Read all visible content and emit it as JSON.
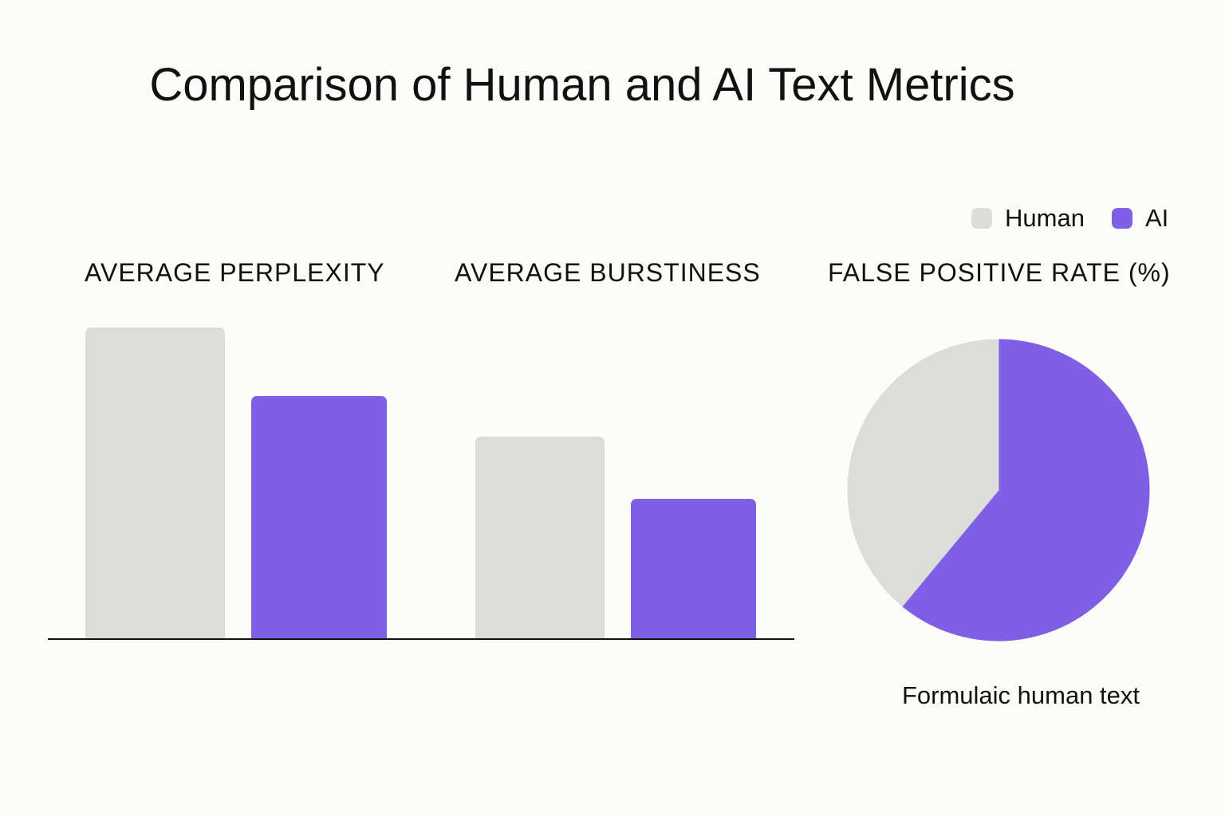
{
  "chart_data": [
    {
      "type": "bar",
      "title": "Comparison of Human and AI Text Metrics",
      "categories": [
        "AVERAGE PERPLEXITY",
        "AVERAGE BURSTINESS"
      ],
      "series": [
        {
          "name": "Human",
          "values": [
            100,
            65
          ],
          "color": "#dcdcda"
        },
        {
          "name": "AI",
          "values": [
            78,
            45
          ],
          "color": "#7f5fe3"
        }
      ],
      "ylim": [
        0,
        100
      ],
      "xlabel": "",
      "ylabel": "",
      "grid": false,
      "legend": "top-right"
    },
    {
      "type": "pie",
      "title": "FALSE POSITIVE RATE (%)",
      "slices": [
        {
          "name": "AI",
          "value": 61,
          "color": "#7f5fe3"
        },
        {
          "name": "Human",
          "value": 39,
          "color": "#dcdcda"
        }
      ],
      "annotation": "Formulaic human text"
    }
  ],
  "title": "Comparison of Human and AI Text Metrics",
  "legend": [
    {
      "label": "Human",
      "color": "#dcdcda"
    },
    {
      "label": "AI",
      "color": "#7f5fe3"
    }
  ]
}
